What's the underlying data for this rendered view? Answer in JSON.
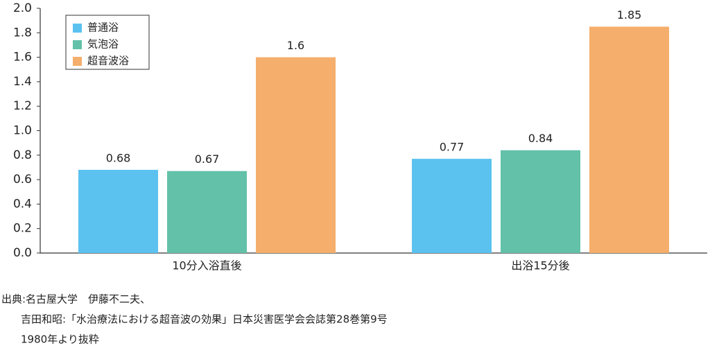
{
  "chart_data": {
    "type": "bar",
    "categories": [
      "10分入浴直後",
      "出浴15分後"
    ],
    "series": [
      {
        "name": "普通浴",
        "color": "#5bc2f0",
        "values": [
          0.68,
          0.77
        ]
      },
      {
        "name": "気泡浴",
        "color": "#62c1a8",
        "values": [
          0.67,
          0.84
        ]
      },
      {
        "name": "超音波浴",
        "color": "#f5ae6b",
        "values": [
          1.6,
          1.85
        ]
      }
    ],
    "ylim": [
      0,
      2
    ],
    "yticks": [
      {
        "value": 0,
        "label": "0.0"
      },
      {
        "value": 0.2,
        "label": "0.2"
      },
      {
        "value": 0.4,
        "label": "0.4"
      },
      {
        "value": 0.6,
        "label": "0.6"
      },
      {
        "value": 0.8,
        "label": "0.8"
      },
      {
        "value": 1,
        "label": "1.0"
      },
      {
        "value": 1.2,
        "label": "1.2"
      },
      {
        "value": 1.4,
        "label": "1.4"
      },
      {
        "value": 1.6,
        "label": "1.6"
      },
      {
        "value": 1.8,
        "label": "1.8"
      },
      {
        "value": 2,
        "label": "2.0"
      }
    ],
    "grid": false,
    "legend": "upper-left",
    "source": [
      "出典:名古屋大学　伊藤不二夫、",
      "吉田和昭:「水治療法における超音波の効果」日本災害医学会会誌第28巻第9号",
      "1980年より抜粋"
    ]
  }
}
